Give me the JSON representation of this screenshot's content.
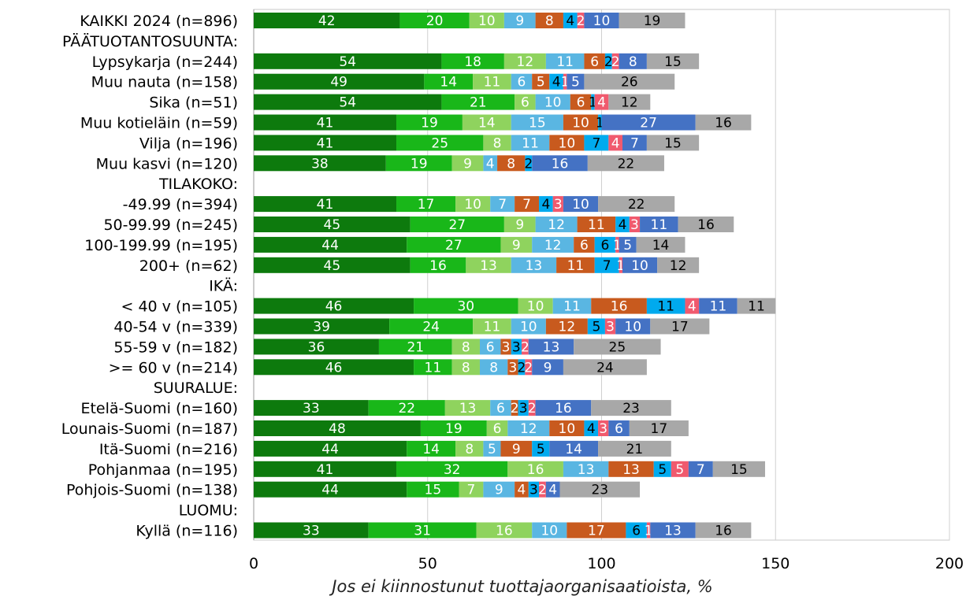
{
  "chart_data": {
    "type": "bar",
    "orientation": "horizontal",
    "stacked": true,
    "xlabel": "Jos ei kiinnostunut tuottajaorganisaatioista, %",
    "ylabel": "",
    "xlim": [
      0,
      200
    ],
    "xticks": [
      0,
      50,
      100,
      150,
      200
    ],
    "grid": true,
    "legend": "none",
    "series_colors": [
      "#0d7a0d",
      "#19b719",
      "#8fd35e",
      "#5ab6e2",
      "#c85a1e",
      "#00aaee",
      "#f05a6e",
      "#4472c4",
      "#a8a8a8"
    ],
    "series_label_colors": [
      "#ffffff",
      "#ffffff",
      "#ffffff",
      "#ffffff",
      "#ffffff",
      "#000000",
      "#ffffff",
      "#ffffff",
      "#000000"
    ],
    "rows": [
      {
        "label": "KAIKKI 2024 (n=896)",
        "values": [
          42,
          20,
          10,
          9,
          8,
          4,
          2,
          10,
          19
        ]
      },
      {
        "label": "PÄÄTUOTANTOSUUNTA:",
        "values": []
      },
      {
        "label": "Lypsykarja (n=244)",
        "values": [
          54,
          18,
          12,
          11,
          6,
          2,
          2,
          8,
          15
        ]
      },
      {
        "label": "Muu nauta (n=158)",
        "values": [
          49,
          14,
          11,
          6,
          5,
          4,
          1,
          5,
          26
        ]
      },
      {
        "label": "Sika (n=51)",
        "values": [
          54,
          21,
          6,
          10,
          6,
          1,
          4,
          0,
          12
        ]
      },
      {
        "label": "Muu kotieläin (n=59)",
        "values": [
          41,
          19,
          14,
          15,
          10,
          1,
          0,
          27,
          16
        ]
      },
      {
        "label": "Vilja (n=196)",
        "values": [
          41,
          25,
          8,
          11,
          10,
          7,
          4,
          7,
          15
        ]
      },
      {
        "label": "Muu kasvi (n=120)",
        "values": [
          38,
          19,
          9,
          4,
          8,
          2,
          0,
          16,
          22
        ]
      },
      {
        "label": "TILAKOKO:",
        "values": []
      },
      {
        "label": "-49.99 (n=394)",
        "values": [
          41,
          17,
          10,
          7,
          7,
          4,
          3,
          10,
          22
        ]
      },
      {
        "label": "50-99.99 (n=245)",
        "values": [
          45,
          27,
          9,
          12,
          11,
          4,
          3,
          11,
          16
        ]
      },
      {
        "label": "100-199.99 (n=195)",
        "values": [
          44,
          27,
          9,
          12,
          6,
          6,
          1,
          5,
          14
        ]
      },
      {
        "label": "200+ (n=62)",
        "values": [
          45,
          16,
          13,
          13,
          11,
          7,
          1,
          10,
          12
        ]
      },
      {
        "label": "IKÄ:",
        "values": []
      },
      {
        "label": "< 40 v (n=105)",
        "values": [
          46,
          30,
          10,
          11,
          16,
          11,
          4,
          11,
          11
        ]
      },
      {
        "label": "40-54 v (n=339)",
        "values": [
          39,
          24,
          11,
          10,
          12,
          5,
          3,
          10,
          17
        ]
      },
      {
        "label": "55-59 v (n=182)",
        "values": [
          36,
          21,
          8,
          6,
          3,
          3,
          2,
          13,
          25
        ]
      },
      {
        "label": ">= 60 v (n=214)",
        "values": [
          46,
          11,
          8,
          8,
          3,
          2,
          2,
          9,
          24
        ]
      },
      {
        "label": "SUURALUE:",
        "values": []
      },
      {
        "label": "Etelä-Suomi (n=160)",
        "values": [
          33,
          22,
          13,
          6,
          2,
          3,
          2,
          16,
          23
        ]
      },
      {
        "label": "Lounais-Suomi (n=187)",
        "values": [
          48,
          19,
          6,
          12,
          10,
          4,
          3,
          6,
          17
        ]
      },
      {
        "label": "Itä-Suomi (n=216)",
        "values": [
          44,
          14,
          8,
          5,
          9,
          5,
          0,
          14,
          21
        ]
      },
      {
        "label": "Pohjanmaa (n=195)",
        "values": [
          41,
          32,
          16,
          13,
          13,
          5,
          5,
          7,
          15
        ]
      },
      {
        "label": "Pohjois-Suomi (n=138)",
        "values": [
          44,
          15,
          7,
          9,
          4,
          3,
          2,
          4,
          23
        ]
      },
      {
        "label": "LUOMU:",
        "values": []
      },
      {
        "label": "Kyllä (n=116)",
        "values": [
          33,
          31,
          16,
          10,
          17,
          6,
          1,
          13,
          16
        ]
      }
    ]
  }
}
